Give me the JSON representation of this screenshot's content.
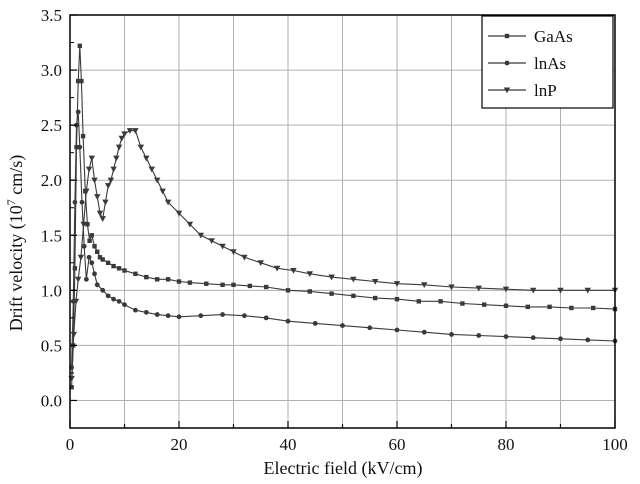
{
  "chart_data": {
    "type": "line",
    "xlabel": "Electric field (kV/cm)",
    "ylabel_main": "Drift velocity (10",
    "ylabel_sup": "7",
    "ylabel_tail": " cm/s)",
    "xlim": [
      0,
      100
    ],
    "ylim": [
      -0.25,
      3.5
    ],
    "xticks": [
      0,
      20,
      40,
      60,
      80,
      100
    ],
    "xtick_labels": [
      "0",
      "20",
      "40",
      "60",
      "80",
      "100"
    ],
    "yticks": [
      0.0,
      0.5,
      1.0,
      1.5,
      2.0,
      2.5,
      3.0,
      3.5
    ],
    "ytick_labels": [
      "0.0",
      "0.5",
      "1.0",
      "1.5",
      "2.0",
      "2.5",
      "3.0",
      "3.5"
    ],
    "grid": true,
    "legend_position": "top-right",
    "colors": {
      "line": "#3a3a3a",
      "grid": "#b0b0b0",
      "axis": "#000000"
    },
    "series": [
      {
        "name": "GaAs",
        "marker": "square",
        "points": [
          [
            0.3,
            0.12
          ],
          [
            0.6,
            0.5
          ],
          [
            0.9,
            1.2
          ],
          [
            1.2,
            2.3
          ],
          [
            1.5,
            2.9
          ],
          [
            1.8,
            3.22
          ],
          [
            2.1,
            2.9
          ],
          [
            2.4,
            2.4
          ],
          [
            2.8,
            1.9
          ],
          [
            3.2,
            1.6
          ],
          [
            3.6,
            1.45
          ],
          [
            4.0,
            1.5
          ],
          [
            4.5,
            1.4
          ],
          [
            5.0,
            1.35
          ],
          [
            5.5,
            1.3
          ],
          [
            6.0,
            1.28
          ],
          [
            7.0,
            1.25
          ],
          [
            8.0,
            1.22
          ],
          [
            9.0,
            1.2
          ],
          [
            10,
            1.18
          ],
          [
            12,
            1.15
          ],
          [
            14,
            1.12
          ],
          [
            16,
            1.1
          ],
          [
            18,
            1.1
          ],
          [
            20,
            1.08
          ],
          [
            22,
            1.07
          ],
          [
            25,
            1.06
          ],
          [
            28,
            1.05
          ],
          [
            30,
            1.05
          ],
          [
            33,
            1.04
          ],
          [
            36,
            1.03
          ],
          [
            40,
            1.0
          ],
          [
            44,
            0.99
          ],
          [
            48,
            0.97
          ],
          [
            52,
            0.95
          ],
          [
            56,
            0.93
          ],
          [
            60,
            0.92
          ],
          [
            64,
            0.9
          ],
          [
            68,
            0.9
          ],
          [
            72,
            0.88
          ],
          [
            76,
            0.87
          ],
          [
            80,
            0.86
          ],
          [
            84,
            0.85
          ],
          [
            88,
            0.85
          ],
          [
            92,
            0.84
          ],
          [
            96,
            0.84
          ],
          [
            100,
            0.83
          ]
        ]
      },
      {
        "name": "lnAs",
        "marker": "circle",
        "points": [
          [
            0.3,
            0.3
          ],
          [
            0.6,
            0.9
          ],
          [
            0.9,
            1.8
          ],
          [
            1.2,
            2.5
          ],
          [
            1.5,
            2.62
          ],
          [
            1.8,
            2.3
          ],
          [
            2.2,
            1.8
          ],
          [
            2.6,
            1.4
          ],
          [
            3.0,
            1.1
          ],
          [
            3.5,
            1.3
          ],
          [
            4.0,
            1.25
          ],
          [
            4.5,
            1.15
          ],
          [
            5.0,
            1.05
          ],
          [
            6.0,
            1.0
          ],
          [
            7.0,
            0.95
          ],
          [
            8.0,
            0.92
          ],
          [
            9.0,
            0.9
          ],
          [
            10,
            0.87
          ],
          [
            12,
            0.82
          ],
          [
            14,
            0.8
          ],
          [
            16,
            0.78
          ],
          [
            18,
            0.77
          ],
          [
            20,
            0.76
          ],
          [
            24,
            0.77
          ],
          [
            28,
            0.78
          ],
          [
            32,
            0.77
          ],
          [
            36,
            0.75
          ],
          [
            40,
            0.72
          ],
          [
            45,
            0.7
          ],
          [
            50,
            0.68
          ],
          [
            55,
            0.66
          ],
          [
            60,
            0.64
          ],
          [
            65,
            0.62
          ],
          [
            70,
            0.6
          ],
          [
            75,
            0.59
          ],
          [
            80,
            0.58
          ],
          [
            85,
            0.57
          ],
          [
            90,
            0.56
          ],
          [
            95,
            0.55
          ],
          [
            100,
            0.54
          ]
        ]
      },
      {
        "name": "lnP",
        "marker": "triangle-down",
        "points": [
          [
            0.3,
            0.2
          ],
          [
            0.7,
            0.6
          ],
          [
            1.1,
            0.9
          ],
          [
            1.5,
            1.1
          ],
          [
            2.0,
            1.3
          ],
          [
            2.5,
            1.6
          ],
          [
            3.0,
            1.9
          ],
          [
            3.5,
            2.1
          ],
          [
            4.0,
            2.2
          ],
          [
            4.5,
            2.0
          ],
          [
            5.0,
            1.85
          ],
          [
            5.5,
            1.7
          ],
          [
            6.0,
            1.65
          ],
          [
            6.5,
            1.8
          ],
          [
            7.0,
            1.95
          ],
          [
            7.5,
            2.0
          ],
          [
            8.0,
            2.1
          ],
          [
            8.5,
            2.2
          ],
          [
            9.0,
            2.3
          ],
          [
            9.5,
            2.38
          ],
          [
            10,
            2.42
          ],
          [
            11,
            2.45
          ],
          [
            12,
            2.45
          ],
          [
            13,
            2.3
          ],
          [
            14,
            2.2
          ],
          [
            15,
            2.1
          ],
          [
            16,
            2.0
          ],
          [
            17,
            1.9
          ],
          [
            18,
            1.8
          ],
          [
            20,
            1.7
          ],
          [
            22,
            1.6
          ],
          [
            24,
            1.5
          ],
          [
            26,
            1.45
          ],
          [
            28,
            1.4
          ],
          [
            30,
            1.35
          ],
          [
            32,
            1.3
          ],
          [
            35,
            1.25
          ],
          [
            38,
            1.2
          ],
          [
            41,
            1.18
          ],
          [
            44,
            1.15
          ],
          [
            48,
            1.12
          ],
          [
            52,
            1.1
          ],
          [
            56,
            1.08
          ],
          [
            60,
            1.06
          ],
          [
            65,
            1.05
          ],
          [
            70,
            1.03
          ],
          [
            75,
            1.02
          ],
          [
            80,
            1.01
          ],
          [
            85,
            1.0
          ],
          [
            90,
            1.0
          ],
          [
            95,
            1.0
          ],
          [
            100,
            1.0
          ]
        ]
      }
    ]
  }
}
